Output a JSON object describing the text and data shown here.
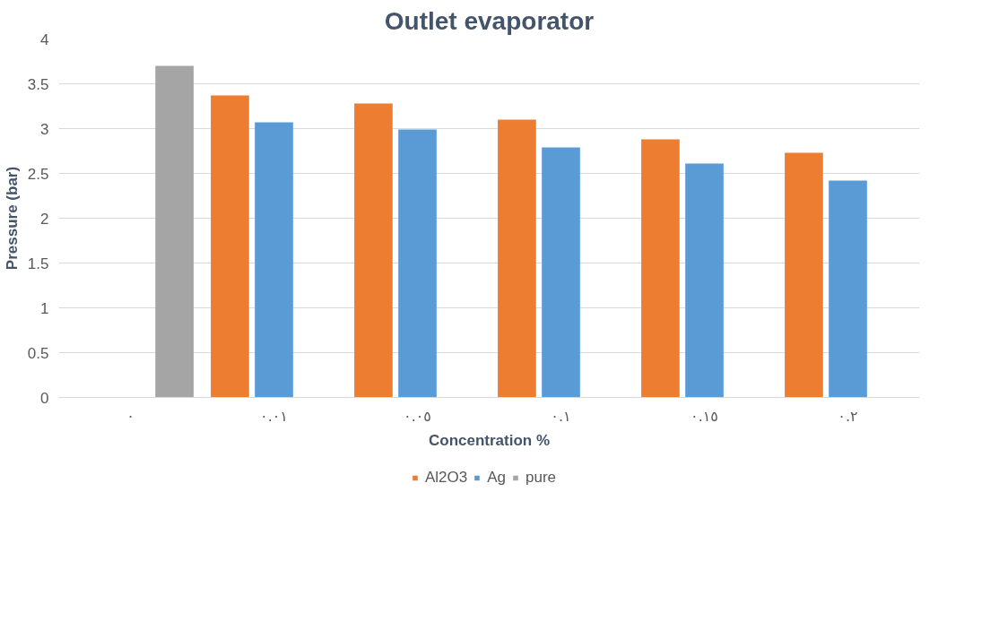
{
  "chart_data": {
    "type": "bar",
    "title": "Outlet evaporator",
    "xlabel": "Concentration %",
    "ylabel": "Pressure (bar)",
    "categories": [
      "٠",
      "٠.٠١",
      "٠.٠٥",
      "٠.١",
      "٠.١٥",
      "٠.٢"
    ],
    "series": [
      {
        "name": "Al2O3",
        "color": "#ed7d31",
        "values": [
          null,
          3.37,
          3.28,
          3.1,
          2.88,
          2.73
        ]
      },
      {
        "name": "Ag",
        "color": "#5b9bd5",
        "values": [
          null,
          3.07,
          2.99,
          2.79,
          2.61,
          2.42
        ]
      },
      {
        "name": "pure",
        "color": "#a5a5a5",
        "values": [
          3.7,
          null,
          null,
          null,
          null,
          null
        ]
      }
    ],
    "ylim": [
      0,
      4
    ],
    "yticks": [
      0,
      0.5,
      1,
      1.5,
      2,
      2.5,
      3,
      3.5,
      4
    ],
    "grid": "y",
    "legend": "bottom"
  }
}
